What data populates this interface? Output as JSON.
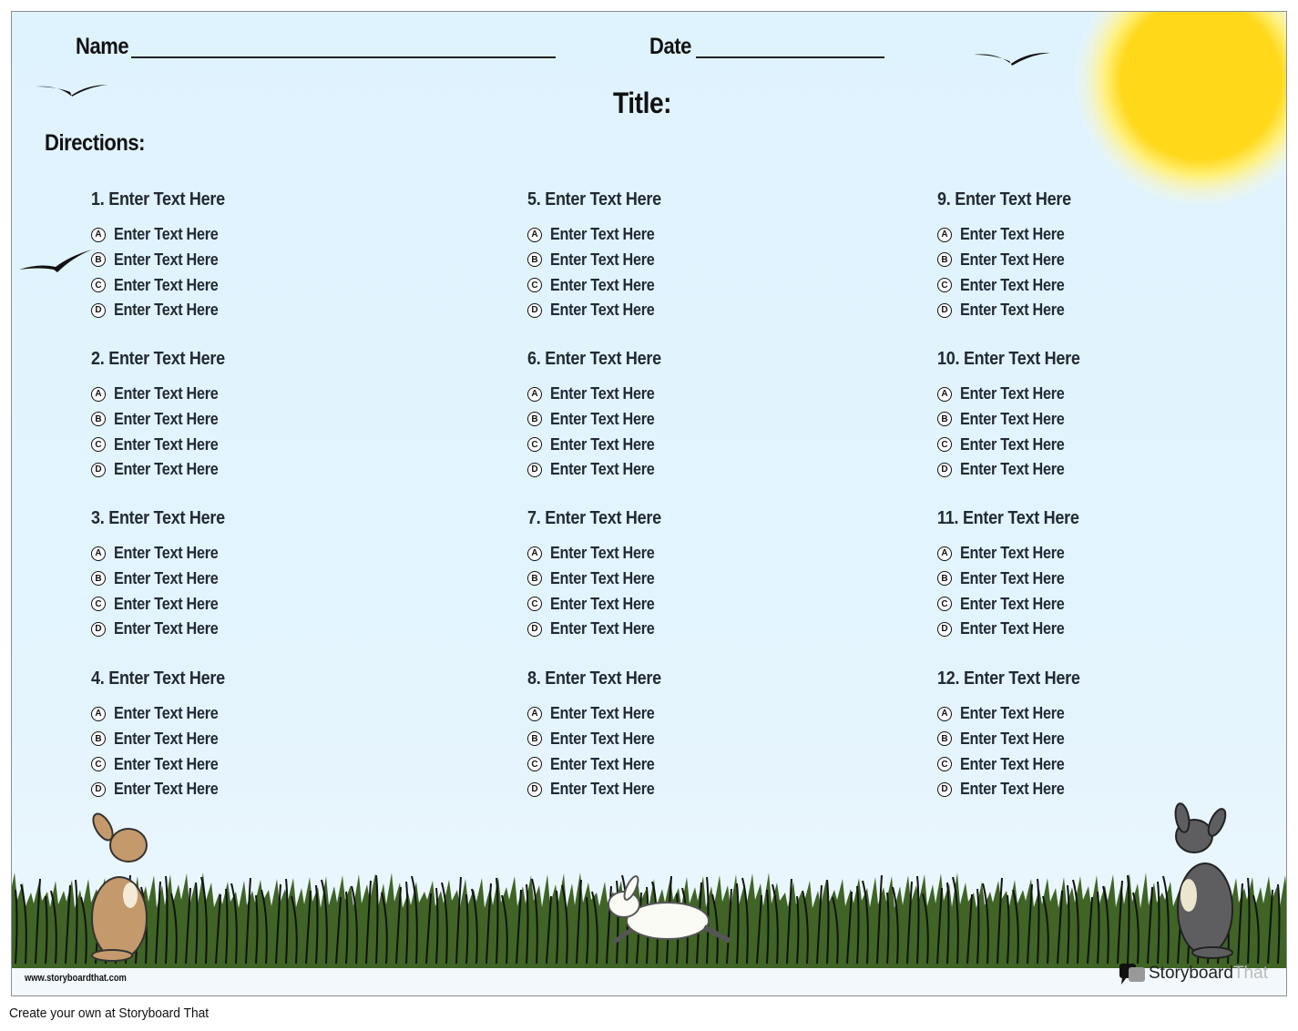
{
  "header": {
    "name_label": "Name",
    "date_label": "Date",
    "title_label": "Title:",
    "directions_label": "Directions:"
  },
  "questions": [
    {
      "text": "1. Enter Text Here",
      "options": [
        "Enter Text Here",
        "Enter Text Here",
        "Enter Text Here",
        "Enter Text Here"
      ]
    },
    {
      "text": "2. Enter Text Here",
      "options": [
        "Enter Text Here",
        "Enter Text Here",
        "Enter Text Here",
        "Enter Text Here"
      ]
    },
    {
      "text": "3. Enter Text Here",
      "options": [
        "Enter Text Here",
        "Enter Text Here",
        "Enter Text Here",
        "Enter Text Here"
      ]
    },
    {
      "text": "4. Enter Text Here",
      "options": [
        "Enter Text Here",
        "Enter Text Here",
        "Enter Text Here",
        "Enter Text Here"
      ]
    },
    {
      "text": "5. Enter Text Here",
      "options": [
        "Enter Text Here",
        "Enter Text Here",
        "Enter Text Here",
        "Enter Text Here"
      ]
    },
    {
      "text": "6. Enter Text Here",
      "options": [
        "Enter Text Here",
        "Enter Text Here",
        "Enter Text Here",
        "Enter Text Here"
      ]
    },
    {
      "text": "7. Enter Text Here",
      "options": [
        "Enter Text Here",
        "Enter Text Here",
        "Enter Text Here",
        "Enter Text Here"
      ]
    },
    {
      "text": "8. Enter Text Here",
      "options": [
        "Enter Text Here",
        "Enter Text Here",
        "Enter Text Here",
        "Enter Text Here"
      ]
    },
    {
      "text": "9. Enter Text Here",
      "options": [
        "Enter Text Here",
        "Enter Text Here",
        "Enter Text Here",
        "Enter Text Here"
      ]
    },
    {
      "text": "10. Enter Text Here",
      "options": [
        "Enter Text Here",
        "Enter Text Here",
        "Enter Text Here",
        "Enter Text Here"
      ]
    },
    {
      "text": "11. Enter Text Here",
      "options": [
        "Enter Text Here",
        "Enter Text Here",
        "Enter Text Here",
        "Enter Text Here"
      ]
    },
    {
      "text": "12. Enter Text Here",
      "options": [
        "Enter Text Here",
        "Enter Text Here",
        "Enter Text Here",
        "Enter Text Here"
      ]
    }
  ],
  "option_letters": [
    "A",
    "B",
    "C",
    "D"
  ],
  "footer": {
    "url": "www.storyboardthat.com",
    "logo_story": "Storyboard",
    "logo_that": "That",
    "caption": "Create your own at Storyboard That"
  },
  "colors": {
    "sky": "#dff3fe",
    "grass": "#3f6425",
    "sun": "#ffd81a"
  }
}
